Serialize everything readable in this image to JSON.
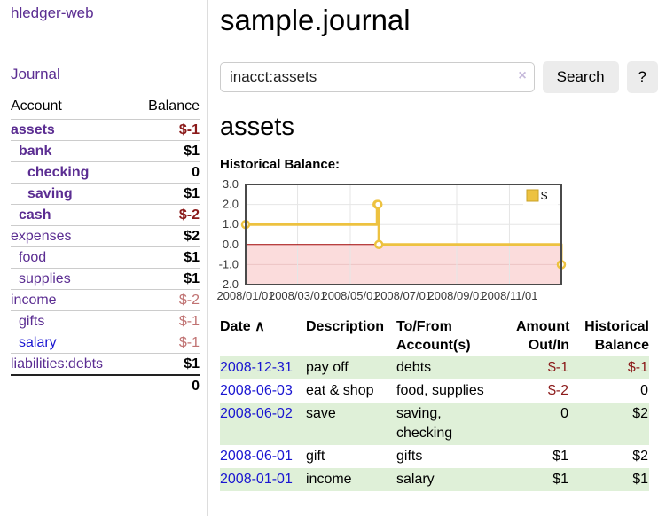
{
  "app": {
    "brand": "hledger-web"
  },
  "nav": {
    "journal": "Journal"
  },
  "sidebar": {
    "header": {
      "account": "Account",
      "balance": "Balance"
    },
    "accounts": [
      {
        "name": "assets",
        "balance": "$-1"
      },
      {
        "name": "bank",
        "balance": "$1"
      },
      {
        "name": "checking",
        "balance": "0"
      },
      {
        "name": "saving",
        "balance": "$1"
      },
      {
        "name": "cash",
        "balance": "$-2"
      },
      {
        "name": "expenses",
        "balance": "$2"
      },
      {
        "name": "food",
        "balance": "$1"
      },
      {
        "name": "supplies",
        "balance": "$1"
      },
      {
        "name": "income",
        "balance": "$-2"
      },
      {
        "name": "gifts",
        "balance": "$-1"
      },
      {
        "name": "salary",
        "balance": "$-1"
      },
      {
        "name": "liabilities:debts",
        "balance": "$1"
      }
    ],
    "total": "0"
  },
  "header": {
    "title": "sample.journal"
  },
  "search": {
    "value": "inacct:assets",
    "clear_icon": "×",
    "button_label": "Search",
    "help_label": "?"
  },
  "account_page": {
    "heading": "assets",
    "chart_title": "Historical Balance:"
  },
  "chart_data": {
    "type": "line",
    "step": true,
    "title": "Historical Balance:",
    "series": [
      {
        "name": "$",
        "color": "#edc240",
        "points": [
          {
            "date": "2008-01-01",
            "value": 1
          },
          {
            "date": "2008-06-01",
            "value": 2
          },
          {
            "date": "2008-06-02",
            "value": 2
          },
          {
            "date": "2008-06-03",
            "value": 0
          },
          {
            "date": "2008-12-31",
            "value": -1
          }
        ]
      }
    ],
    "xlim": [
      "2008-01-01",
      "2008-12-31"
    ],
    "ylim": [
      -2,
      3
    ],
    "x_ticks": [
      {
        "date": "2008-01-01",
        "label": "2008/01/01"
      },
      {
        "date": "2008-03-01",
        "label": "2008/03/01"
      },
      {
        "date": "2008-05-01",
        "label": "2008/05/01"
      },
      {
        "date": "2008-07-01",
        "label": "2008/07/01"
      },
      {
        "date": "2008-09-01",
        "label": "2008/09/01"
      },
      {
        "date": "2008-11-01",
        "label": "2008/11/01"
      }
    ],
    "y_ticks": [
      {
        "value": 3,
        "label": "3.0"
      },
      {
        "value": 2,
        "label": "2.0"
      },
      {
        "value": 1,
        "label": "1.0"
      },
      {
        "value": 0,
        "label": "0.0"
      },
      {
        "value": -1,
        "label": "-1.0"
      },
      {
        "value": -2,
        "label": "-2.0"
      }
    ],
    "legend": {
      "label": "$",
      "position": "top-right"
    },
    "negative_region": {
      "from": 0,
      "to": -2,
      "fill": "#fbdcdc"
    },
    "zero_line_color": "#a00000",
    "grid": true
  },
  "register": {
    "sort_icon": "∧",
    "columns": [
      {
        "label": "Date"
      },
      {
        "label": "Description"
      },
      {
        "label": "To/From\nAccount(s)"
      },
      {
        "label": "Amount\nOut/In"
      },
      {
        "label": "Historical\nBalance"
      }
    ],
    "rows": [
      {
        "date": "2008-12-31",
        "description": "pay off",
        "accounts": "debts",
        "amount": "$-1",
        "balance": "$-1"
      },
      {
        "date": "2008-06-03",
        "description": "eat & shop",
        "accounts": "food, supplies",
        "amount": "$-2",
        "balance": "0"
      },
      {
        "date": "2008-06-02",
        "description": "save",
        "accounts": "saving,\nchecking",
        "amount": "0",
        "balance": "$2"
      },
      {
        "date": "2008-06-01",
        "description": "gift",
        "accounts": "gifts",
        "amount": "$1",
        "balance": "$2"
      },
      {
        "date": "2008-01-01",
        "description": "income",
        "accounts": "salary",
        "amount": "$1",
        "balance": "$1"
      }
    ]
  }
}
